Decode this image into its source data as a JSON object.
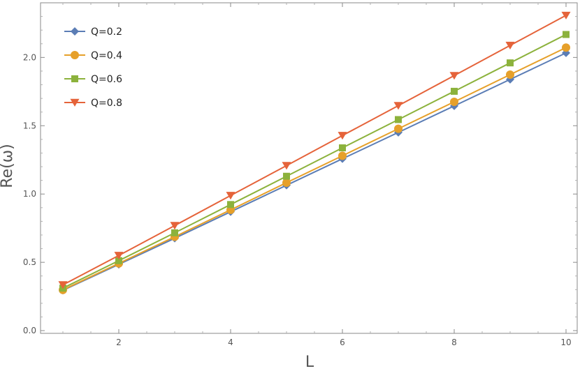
{
  "chart_data": {
    "type": "line",
    "title": "",
    "xlabel": "L",
    "ylabel": "Re(ω)",
    "xlim": [
      0.6,
      10.2
    ],
    "ylim": [
      -0.02,
      2.4
    ],
    "x_ticks": [
      2,
      4,
      6,
      8,
      10
    ],
    "x_tick_labels": [
      "2",
      "4",
      "6",
      "8",
      "10"
    ],
    "y_ticks": [
      0.0,
      0.5,
      1.0,
      1.5,
      2.0
    ],
    "y_tick_labels": [
      "0.0",
      "0.5",
      "1.0",
      "1.5",
      "2.0"
    ],
    "grid": false,
    "legend_position": "top-left",
    "x": [
      1,
      2,
      3,
      4,
      5,
      6,
      7,
      8,
      9,
      10
    ],
    "series": [
      {
        "name": "Q=0.2",
        "color": "#5b7db5",
        "marker": "diamond",
        "values": [
          0.295,
          0.485,
          0.676,
          0.87,
          1.064,
          1.258,
          1.451,
          1.645,
          1.839,
          2.033
        ]
      },
      {
        "name": "Q=0.4",
        "color": "#e6a02a",
        "marker": "circle",
        "values": [
          0.298,
          0.492,
          0.687,
          0.884,
          1.083,
          1.28,
          1.478,
          1.675,
          1.874,
          2.072
        ]
      },
      {
        "name": "Q=0.6",
        "color": "#8cb23c",
        "marker": "square",
        "values": [
          0.311,
          0.512,
          0.716,
          0.923,
          1.13,
          1.338,
          1.545,
          1.752,
          1.96,
          2.168
        ]
      },
      {
        "name": "Q=0.8",
        "color": "#e5633a",
        "marker": "triangle-down",
        "values": [
          0.335,
          0.55,
          0.769,
          0.989,
          1.208,
          1.428,
          1.647,
          1.867,
          2.088,
          2.308
        ]
      }
    ]
  }
}
